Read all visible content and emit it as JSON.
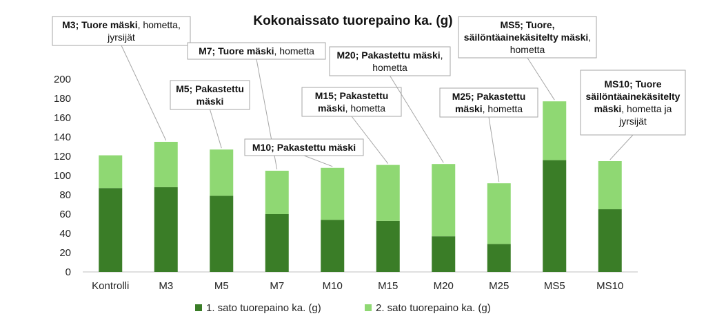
{
  "chart_data": {
    "type": "bar",
    "stacked": true,
    "title": "Kokonaissato tuorepaino ka. (g)",
    "xlabel": "",
    "ylabel": "",
    "ylim": [
      0,
      200
    ],
    "yticks": [
      0,
      20,
      40,
      60,
      80,
      100,
      120,
      140,
      160,
      180,
      200
    ],
    "grid": false,
    "legend_position": "bottom",
    "categories": [
      "Kontrolli",
      "M3",
      "M5",
      "M7",
      "M10",
      "M15",
      "M20",
      "M25",
      "MS5",
      "MS10"
    ],
    "series": [
      {
        "name": "1. sato tuorepaino ka. (g)",
        "color": "#3a7d27",
        "values": [
          87,
          88,
          79,
          60,
          54,
          53,
          37,
          29,
          116,
          65
        ]
      },
      {
        "name": "2. sato tuorepaino ka. (g)",
        "color": "#8fd873",
        "values": [
          34,
          47,
          48,
          45,
          54,
          58,
          75,
          63,
          61,
          50
        ]
      }
    ],
    "annotations": [
      {
        "category": "M3",
        "lines": [
          [
            {
              "t": "M3; Tuore mäski",
              "b": true
            },
            {
              "t": ", hometta,",
              "b": false
            }
          ],
          [
            {
              "t": "jyrsijät",
              "b": false
            }
          ]
        ]
      },
      {
        "category": "M5",
        "lines": [
          [
            {
              "t": "M5; Pakastettu",
              "b": true
            }
          ],
          [
            {
              "t": "mäski",
              "b": true
            }
          ]
        ]
      },
      {
        "category": "M7",
        "lines": [
          [
            {
              "t": "M7; Tuore mäski",
              "b": true
            },
            {
              "t": ", hometta",
              "b": false
            }
          ]
        ]
      },
      {
        "category": "M10",
        "lines": [
          [
            {
              "t": "M10; Pakastettu mäski",
              "b": true
            }
          ]
        ]
      },
      {
        "category": "M15",
        "lines": [
          [
            {
              "t": "M15; Pakastettu",
              "b": true
            }
          ],
          [
            {
              "t": "mäski",
              "b": true
            },
            {
              "t": ", hometta",
              "b": false
            }
          ]
        ]
      },
      {
        "category": "M20",
        "lines": [
          [
            {
              "t": "M20; Pakastettu mäski",
              "b": true
            },
            {
              "t": ",",
              "b": false
            }
          ],
          [
            {
              "t": "hometta",
              "b": false
            }
          ]
        ]
      },
      {
        "category": "M25",
        "lines": [
          [
            {
              "t": "M25; Pakastettu",
              "b": true
            }
          ],
          [
            {
              "t": "mäski",
              "b": true
            },
            {
              "t": ", hometta",
              "b": false
            }
          ]
        ]
      },
      {
        "category": "MS5",
        "lines": [
          [
            {
              "t": "MS5; Tuore,",
              "b": true
            }
          ],
          [
            {
              "t": "säilöntäainekäsitelty mäski",
              "b": true
            },
            {
              "t": ",",
              "b": false
            }
          ],
          [
            {
              "t": "hometta",
              "b": false
            }
          ]
        ]
      },
      {
        "category": "MS10",
        "lines": [
          [
            {
              "t": "MS10; Tuore",
              "b": true
            }
          ],
          [
            {
              "t": "säilöntäainekäsitelty",
              "b": true
            }
          ],
          [
            {
              "t": "mäski",
              "b": true
            },
            {
              "t": ", hometta ja",
              "b": false
            }
          ],
          [
            {
              "t": "jyrsijät",
              "b": false
            }
          ]
        ]
      }
    ]
  }
}
